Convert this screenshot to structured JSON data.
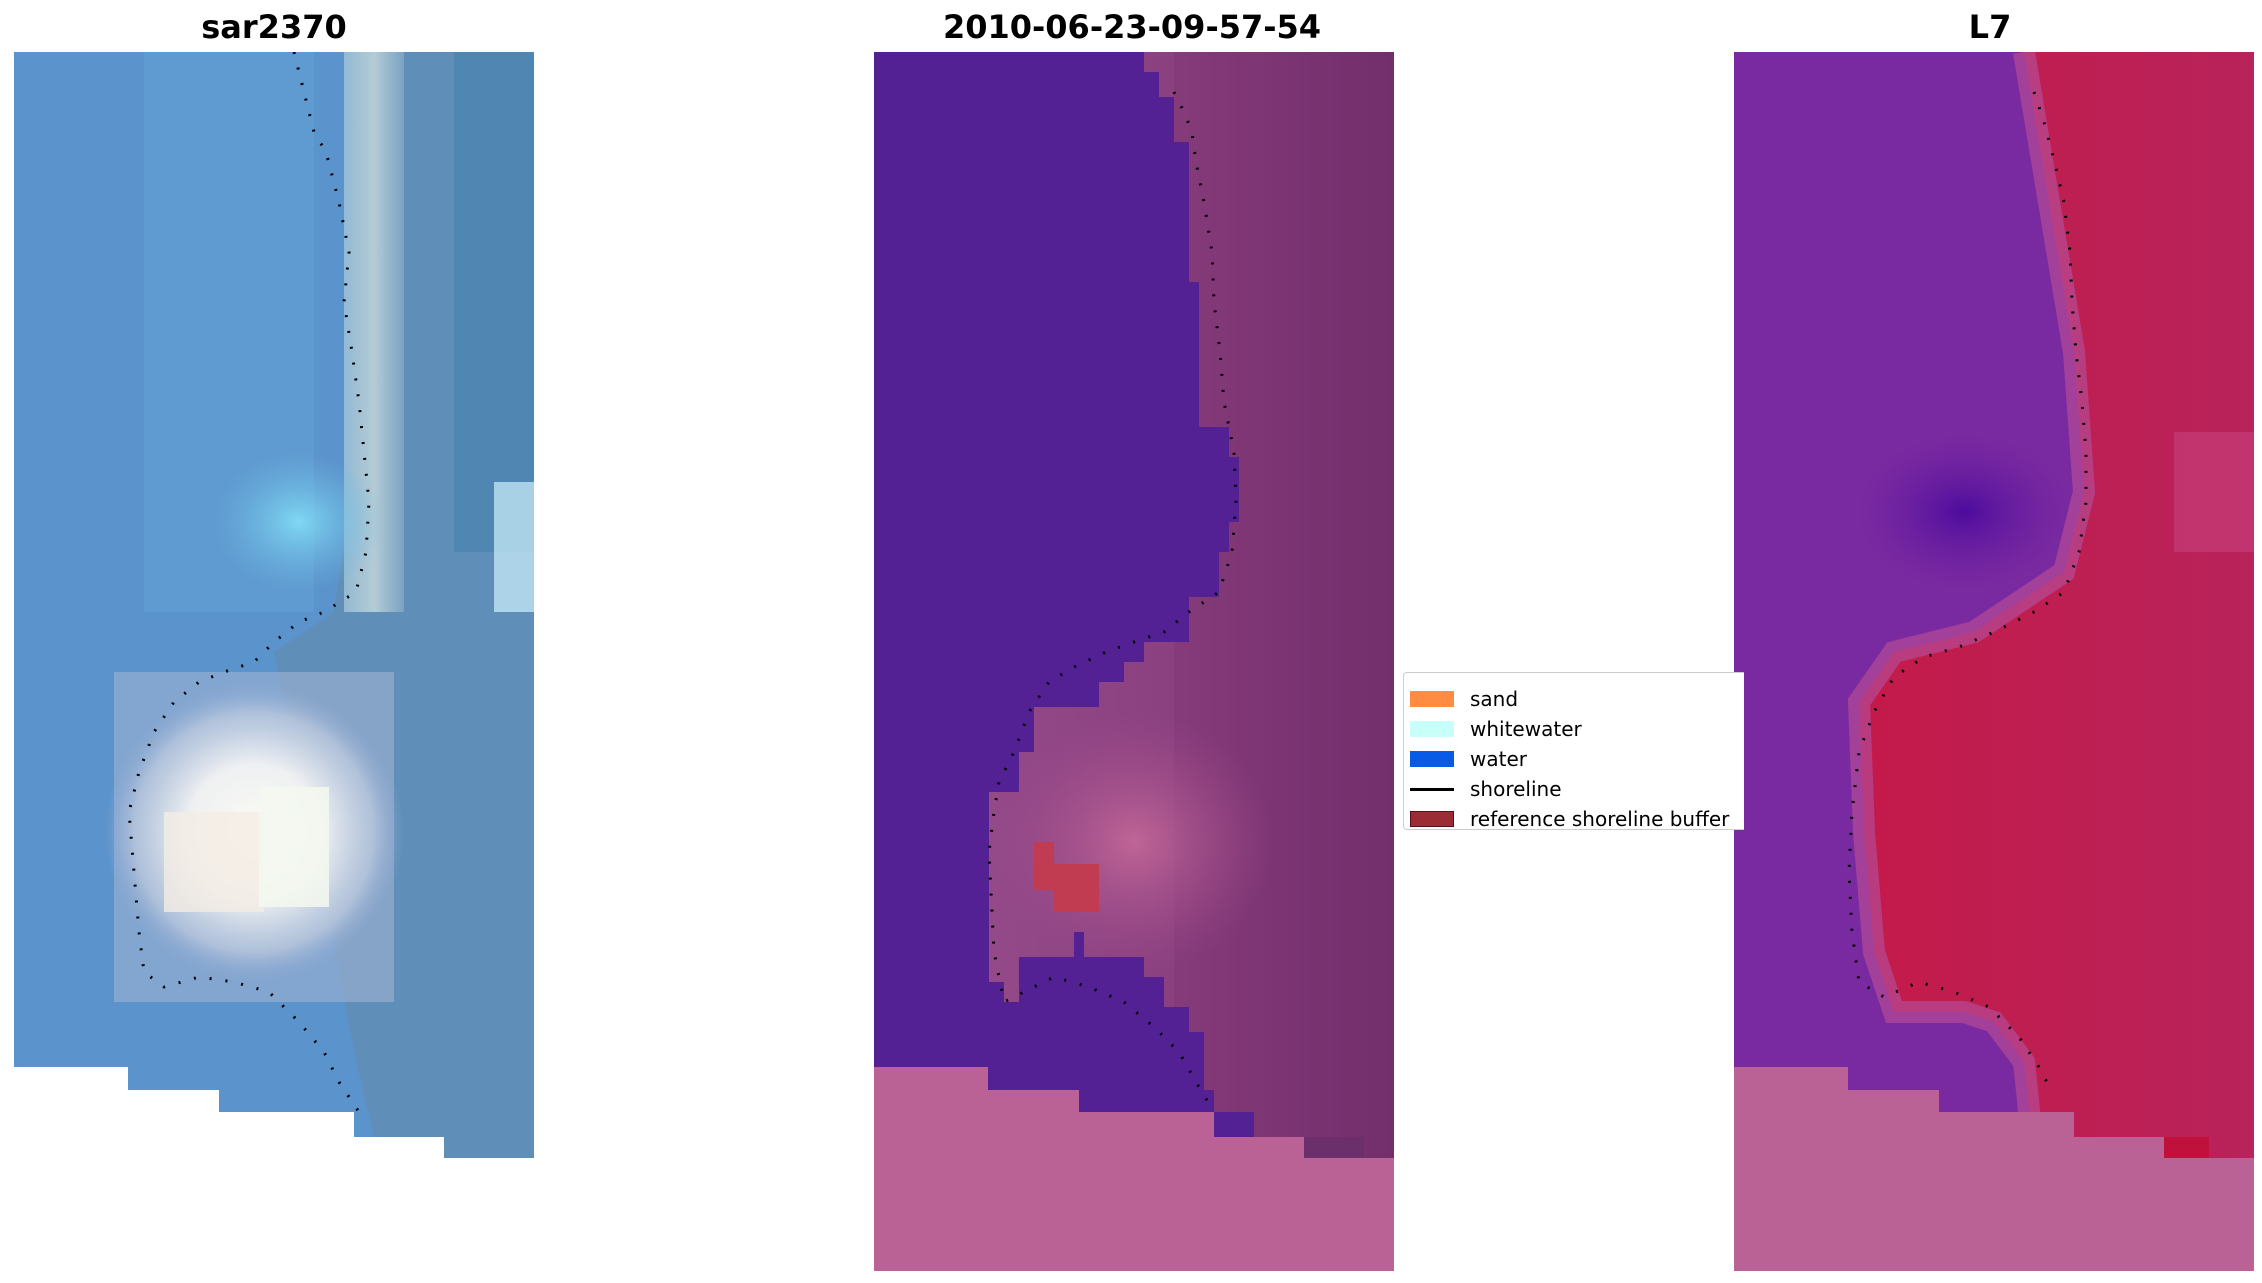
{
  "panels": [
    {
      "title": "sar2370"
    },
    {
      "title": "2010-06-23-09-57-54"
    },
    {
      "title": "L7"
    }
  ],
  "legend": {
    "items": [
      {
        "label": "sand",
        "color": "#ff8c42",
        "kind": "patch"
      },
      {
        "label": "whitewater",
        "color": "#c8fff8",
        "kind": "patch"
      },
      {
        "label": "water",
        "color": "#0a5ae8",
        "kind": "patch"
      },
      {
        "label": "shoreline",
        "color": "#000000",
        "kind": "line"
      },
      {
        "label": "reference shoreline buffer",
        "color": "#9b2b35",
        "kind": "patch"
      }
    ]
  }
}
